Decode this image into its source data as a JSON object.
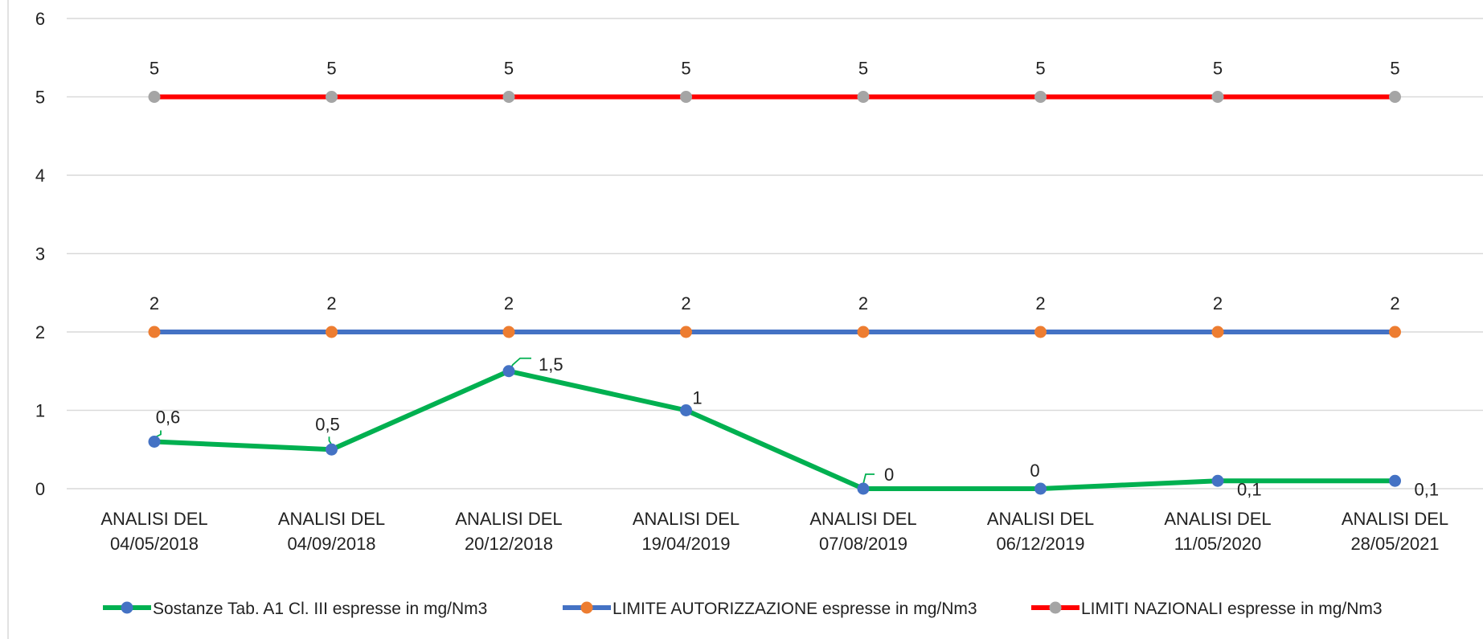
{
  "chart_data": {
    "type": "line",
    "categories": [
      "ANALISI DEL 04/05/2018",
      "ANALISI DEL 04/09/2018",
      "ANALISI DEL 20/12/2018",
      "ANALISI DEL 19/04/2019",
      "ANALISI DEL 07/08/2019",
      "ANALISI DEL 06/12/2019",
      "ANALISI DEL 11/05/2020",
      "ANALISI DEL 28/05/2021"
    ],
    "category_lines": [
      [
        "ANALISI DEL",
        "04/05/2018"
      ],
      [
        "ANALISI DEL",
        "04/09/2018"
      ],
      [
        "ANALISI DEL",
        "20/12/2018"
      ],
      [
        "ANALISI DEL",
        "19/04/2019"
      ],
      [
        "ANALISI DEL",
        "07/08/2019"
      ],
      [
        "ANALISI DEL",
        "06/12/2019"
      ],
      [
        "ANALISI DEL",
        "11/05/2020"
      ],
      [
        "ANALISI DEL",
        "28/05/2021"
      ]
    ],
    "series": [
      {
        "name": "Sostanze Tab.  A1  Cl. III espresse in mg/Nm3",
        "values": [
          0.6,
          0.5,
          1.5,
          1,
          0,
          0,
          0.1,
          0.1
        ],
        "labels": [
          "0,6",
          "0,5",
          "1,5",
          "1",
          "0",
          "0",
          "0,1",
          "0,1"
        ],
        "line_color": "#00b050",
        "marker_color": "#4472c4"
      },
      {
        "name": "LIMITE AUTORIZZAZIONE espresse in mg/Nm3",
        "values": [
          2,
          2,
          2,
          2,
          2,
          2,
          2,
          2
        ],
        "labels": [
          "2",
          "2",
          "2",
          "2",
          "2",
          "2",
          "2",
          "2"
        ],
        "line_color": "#4472c4",
        "marker_color": "#ed7d31"
      },
      {
        "name": "LIMITI NAZIONALI espresse in mg/Nm3",
        "values": [
          5,
          5,
          5,
          5,
          5,
          5,
          5,
          5
        ],
        "labels": [
          "5",
          "5",
          "5",
          "5",
          "5",
          "5",
          "5",
          "5"
        ],
        "line_color": "#ff0000",
        "marker_color": "#a5a5a5"
      }
    ],
    "y_ticks": [
      "0",
      "1",
      "2",
      "3",
      "4",
      "5",
      "6"
    ],
    "ylim": [
      0,
      6
    ],
    "grid": true,
    "legend_position": "bottom",
    "gridline_color": "#d9d9d9"
  }
}
